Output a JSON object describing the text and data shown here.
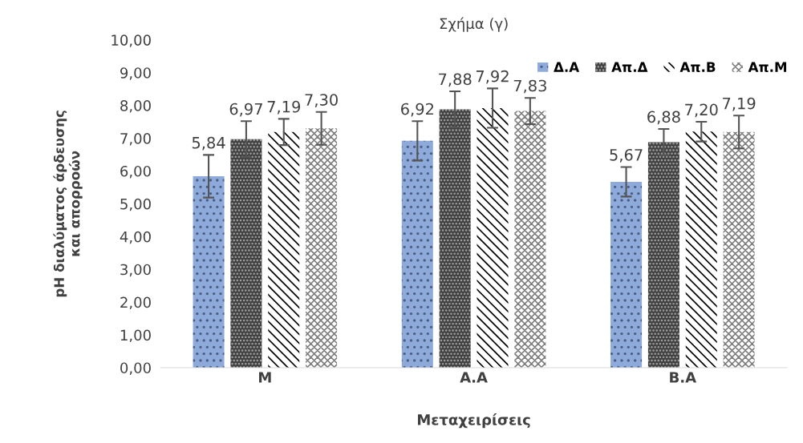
{
  "chart_data": {
    "type": "bar",
    "title": "Σχήμα (γ)",
    "xlabel": "Μεταχειρίσεις",
    "ylabel": "pH διαλύματος άρδευσης\nκαι απορροών",
    "categories": [
      "Μ",
      "Α.Α",
      "Β.Α"
    ],
    "series": [
      {
        "name": "Δ.Α",
        "color": "#8eaadb",
        "values": [
          5.84,
          6.92,
          5.67
        ],
        "errors": [
          0.65,
          0.6,
          0.45
        ],
        "value_labels": [
          "5,84",
          "6,92",
          "5,67"
        ]
      },
      {
        "name": "Απ.Δ",
        "color": "#404040",
        "values": [
          6.97,
          7.88,
          6.88
        ],
        "errors": [
          0.55,
          0.55,
          0.4
        ],
        "value_labels": [
          "6,97",
          "7,88",
          "6,88"
        ]
      },
      {
        "name": "Απ.Β",
        "color": "#000000",
        "values": [
          7.19,
          7.92,
          7.2
        ],
        "errors": [
          0.4,
          0.6,
          0.3
        ],
        "value_labels": [
          "7,19",
          "7,92",
          "7,20"
        ]
      },
      {
        "name": "Απ.Μ",
        "color": "#7f7f7f",
        "values": [
          7.3,
          7.83,
          7.19
        ],
        "errors": [
          0.5,
          0.4,
          0.5
        ],
        "value_labels": [
          "7,30",
          "7,83",
          "7,19"
        ]
      }
    ],
    "ylim": [
      0,
      10
    ],
    "yticks": [
      {
        "value": 0,
        "label": "0,00"
      },
      {
        "value": 1,
        "label": "1,00"
      },
      {
        "value": 2,
        "label": "2,00"
      },
      {
        "value": 3,
        "label": "3,00"
      },
      {
        "value": 4,
        "label": "4,00"
      },
      {
        "value": 5,
        "label": "5,00"
      },
      {
        "value": 6,
        "label": "6,00"
      },
      {
        "value": 7,
        "label": "7,00"
      },
      {
        "value": 8,
        "label": "8,00"
      },
      {
        "value": 9,
        "label": "9,00"
      },
      {
        "value": 10,
        "label": "10,00"
      }
    ],
    "legend": "top right",
    "grid": false
  }
}
